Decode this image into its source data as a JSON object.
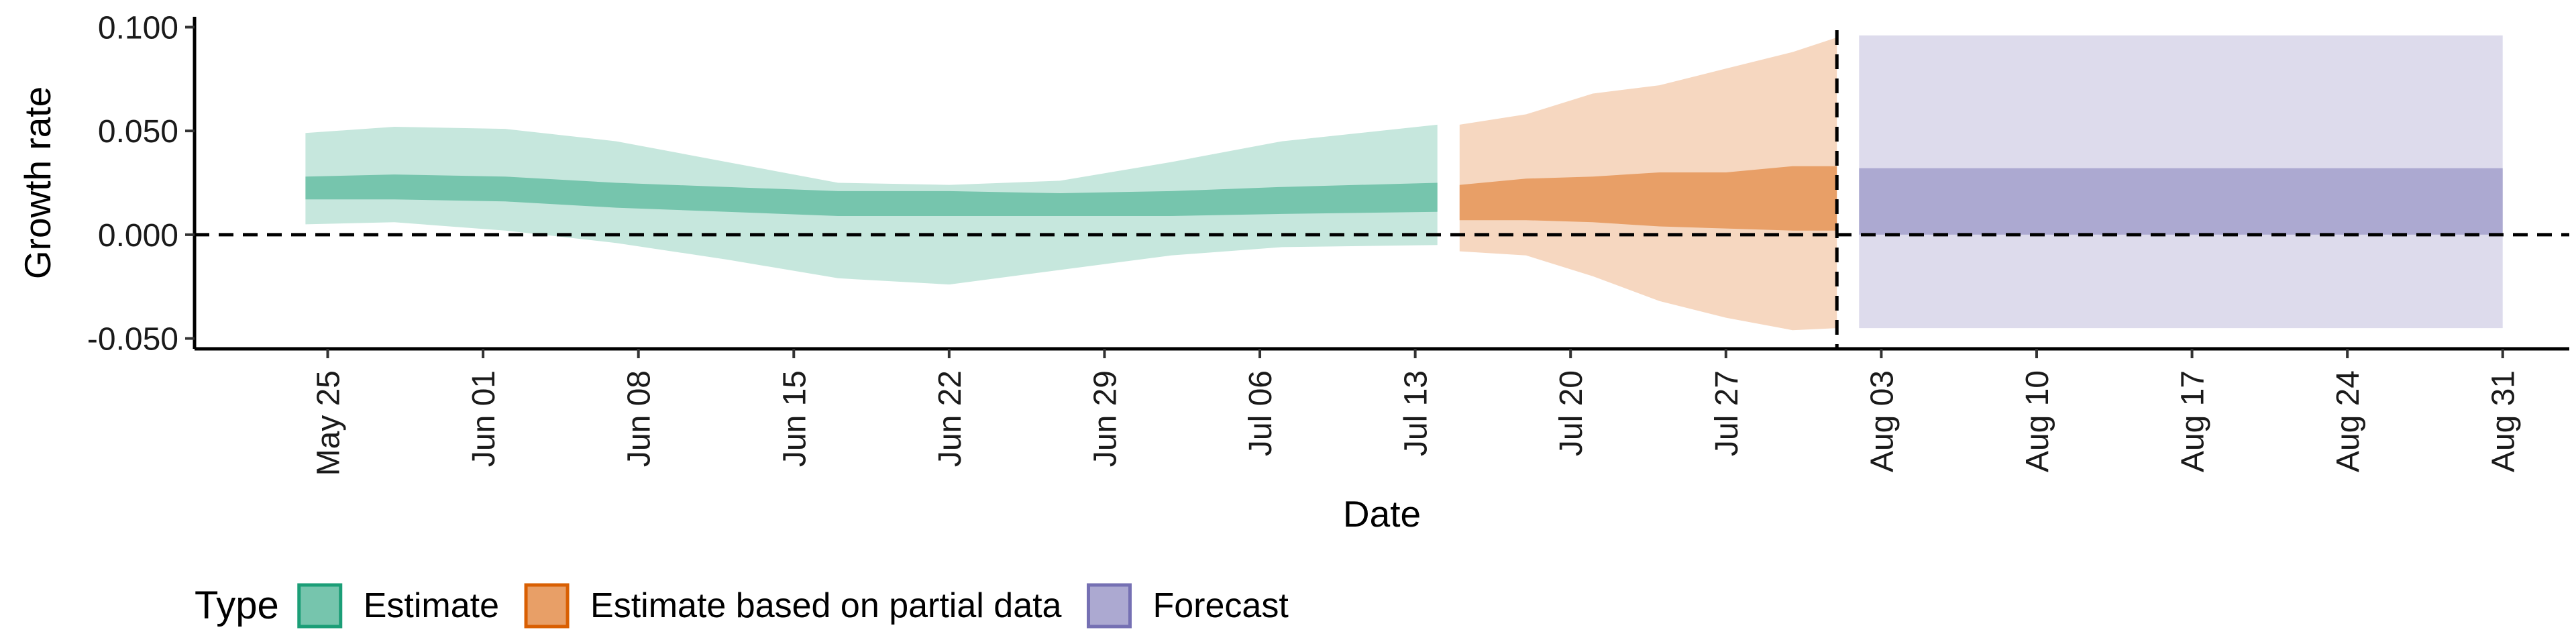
{
  "chart_data": {
    "type": "area",
    "xlabel": "Date",
    "ylabel": "Growth rate",
    "ylim": [
      -0.055,
      0.105
    ],
    "y_ticks": [
      -0.05,
      0.0,
      0.05,
      0.1
    ],
    "y_tick_labels": [
      "-0.050",
      "0.000",
      "0.050",
      "0.100"
    ],
    "x_range": [
      "2020-05-19",
      "2020-09-03"
    ],
    "x_ticks": [
      "2020-05-25",
      "2020-06-01",
      "2020-06-08",
      "2020-06-15",
      "2020-06-22",
      "2020-06-29",
      "2020-07-06",
      "2020-07-13",
      "2020-07-20",
      "2020-07-27",
      "2020-08-03",
      "2020-08-10",
      "2020-08-17",
      "2020-08-24",
      "2020-08-31"
    ],
    "x_tick_labels": [
      "May 25",
      "Jun 01",
      "Jun 08",
      "Jun 15",
      "Jun 22",
      "Jun 29",
      "Jul 06",
      "Jul 13",
      "Jul 20",
      "Jul 27",
      "Aug 03",
      "Aug 10",
      "Aug 17",
      "Aug 24",
      "Aug 31"
    ],
    "reference_lines": {
      "horizontal_y": 0.0,
      "vertical_date": "2020-08-01"
    },
    "legend": {
      "title": "Type",
      "position": "bottom-left",
      "entries": [
        "Estimate",
        "Estimate based on partial data",
        "Forecast"
      ]
    },
    "series": [
      {
        "name": "Estimate",
        "color": "#1b9e77",
        "x": [
          "2020-05-24",
          "2020-05-28",
          "2020-06-02",
          "2020-06-07",
          "2020-06-12",
          "2020-06-17",
          "2020-06-22",
          "2020-06-27",
          "2020-07-02",
          "2020-07-07",
          "2020-07-14"
        ],
        "median": [
          0.022,
          0.023,
          0.022,
          0.019,
          0.017,
          0.015,
          0.015,
          0.015,
          0.015,
          0.017,
          0.018
        ],
        "lower_50": [
          0.017,
          0.017,
          0.016,
          0.013,
          0.011,
          0.009,
          0.009,
          0.009,
          0.009,
          0.01,
          0.011
        ],
        "upper_50": [
          0.028,
          0.029,
          0.028,
          0.025,
          0.023,
          0.021,
          0.021,
          0.02,
          0.021,
          0.023,
          0.025
        ],
        "lower_90": [
          0.005,
          0.006,
          0.002,
          -0.004,
          -0.012,
          -0.021,
          -0.024,
          -0.017,
          -0.01,
          -0.006,
          -0.005
        ],
        "upper_90": [
          0.049,
          0.052,
          0.051,
          0.045,
          0.035,
          0.025,
          0.024,
          0.026,
          0.035,
          0.045,
          0.053
        ]
      },
      {
        "name": "Estimate based on partial data",
        "color": "#d95f02",
        "x": [
          "2020-07-15",
          "2020-07-18",
          "2020-07-21",
          "2020-07-24",
          "2020-07-27",
          "2020-07-30",
          "2020-08-01"
        ],
        "median": [
          0.016,
          0.017,
          0.017,
          0.018,
          0.018,
          0.019,
          0.018
        ],
        "lower_50": [
          0.007,
          0.007,
          0.006,
          0.004,
          0.003,
          0.002,
          0.002
        ],
        "upper_50": [
          0.024,
          0.027,
          0.028,
          0.03,
          0.03,
          0.033,
          0.033
        ],
        "lower_90": [
          -0.008,
          -0.01,
          -0.02,
          -0.032,
          -0.04,
          -0.046,
          -0.045
        ],
        "upper_90": [
          0.053,
          0.058,
          0.068,
          0.072,
          0.08,
          0.088,
          0.095
        ]
      },
      {
        "name": "Forecast",
        "color": "#7570b3",
        "x": [
          "2020-08-02",
          "2020-08-31"
        ],
        "lower_50": [
          0.0,
          0.0
        ],
        "upper_50": [
          0.032,
          0.032
        ],
        "lower_90": [
          -0.045,
          -0.045
        ],
        "upper_90": [
          0.096,
          0.096
        ]
      }
    ]
  }
}
